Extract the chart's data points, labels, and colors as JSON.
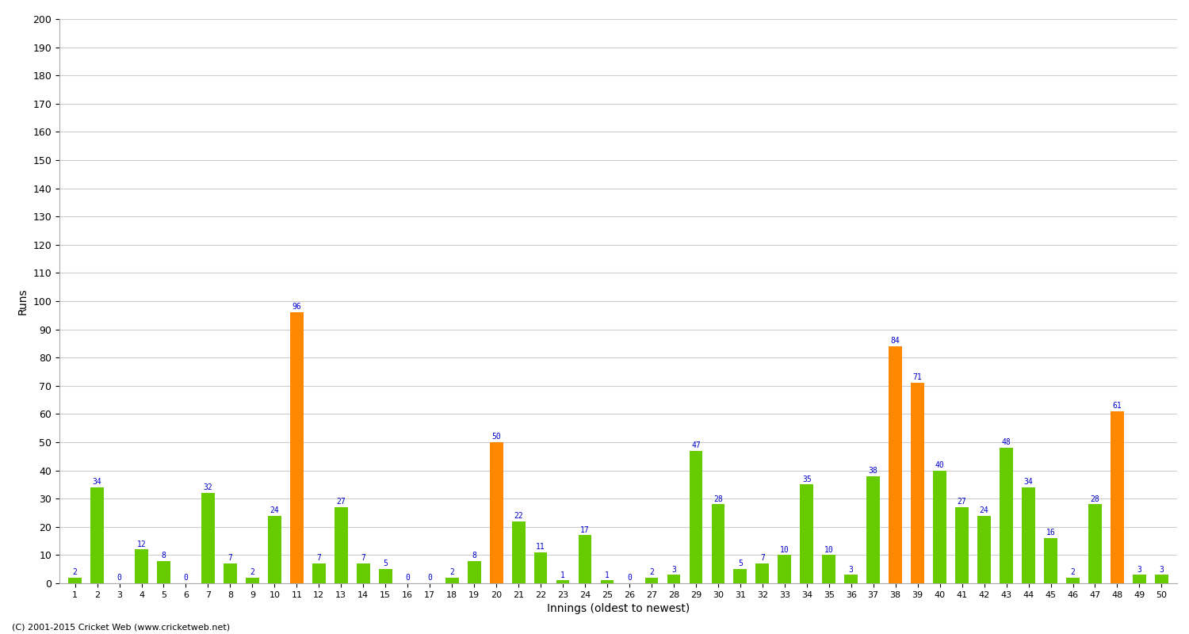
{
  "innings": [
    1,
    2,
    3,
    4,
    5,
    6,
    7,
    8,
    9,
    10,
    11,
    12,
    13,
    14,
    15,
    16,
    17,
    18,
    19,
    20,
    21,
    22,
    23,
    24,
    25,
    26,
    27,
    28,
    29,
    30,
    31,
    32,
    33,
    34,
    35,
    36,
    37,
    38,
    39,
    40,
    41,
    42,
    43,
    44,
    45,
    46,
    47,
    48,
    49,
    50
  ],
  "runs": [
    2,
    34,
    0,
    12,
    8,
    0,
    32,
    7,
    2,
    24,
    96,
    7,
    27,
    7,
    5,
    0,
    0,
    2,
    8,
    50,
    22,
    11,
    1,
    17,
    1,
    0,
    2,
    3,
    47,
    28,
    5,
    7,
    10,
    35,
    10,
    3,
    38,
    84,
    71,
    40,
    27,
    24,
    48,
    34,
    16,
    2,
    28,
    61,
    3,
    3
  ],
  "is_orange": [
    false,
    false,
    false,
    false,
    false,
    false,
    false,
    false,
    false,
    false,
    true,
    false,
    false,
    false,
    false,
    false,
    false,
    false,
    false,
    true,
    false,
    false,
    false,
    false,
    false,
    false,
    false,
    false,
    false,
    false,
    false,
    false,
    false,
    false,
    false,
    false,
    false,
    true,
    true,
    false,
    false,
    false,
    false,
    false,
    false,
    false,
    false,
    true,
    false,
    false
  ],
  "xlabel": "Innings (oldest to newest)",
  "ylabel": "Runs",
  "ylim": [
    0,
    200
  ],
  "yticks": [
    0,
    10,
    20,
    30,
    40,
    50,
    60,
    70,
    80,
    90,
    100,
    110,
    120,
    130,
    140,
    150,
    160,
    170,
    180,
    190,
    200
  ],
  "green_color": "#66cc00",
  "orange_color": "#ff8800",
  "label_color": "#0000cc",
  "grid_color": "#cccccc",
  "bg_color": "#ffffff",
  "footer": "(C) 2001-2015 Cricket Web (www.cricketweb.net)",
  "bar_width": 0.6
}
